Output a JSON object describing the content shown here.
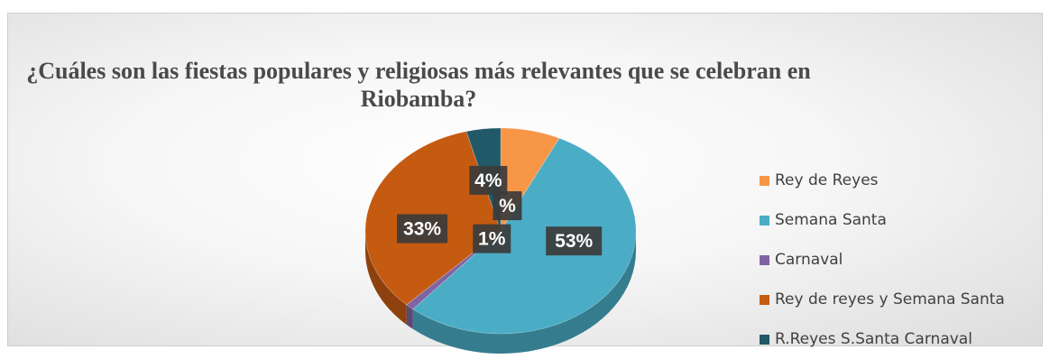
{
  "chart_data": {
    "type": "pie",
    "title": "¿Cuáles son las fiestas populares y religiosas más relevantes que se celebran en Riobamba?",
    "slices": [
      {
        "name": "Rey de Reyes",
        "value": 7,
        "label": "%",
        "color": "#f79646"
      },
      {
        "name": "Semana Santa",
        "value": 53,
        "label": "53%",
        "color": "#4bacc6"
      },
      {
        "name": "Carnaval",
        "value": 1,
        "label": "1%",
        "color": "#8064a2"
      },
      {
        "name": "Rey de reyes y Semana Santa",
        "value": 33,
        "label": "33%",
        "color": "#c55a11"
      },
      {
        "name": "R.Reyes S.Santa Carnaval",
        "value": 4,
        "label": "4%",
        "color": "#215968"
      }
    ],
    "legend_position": "right",
    "style": "3d"
  }
}
